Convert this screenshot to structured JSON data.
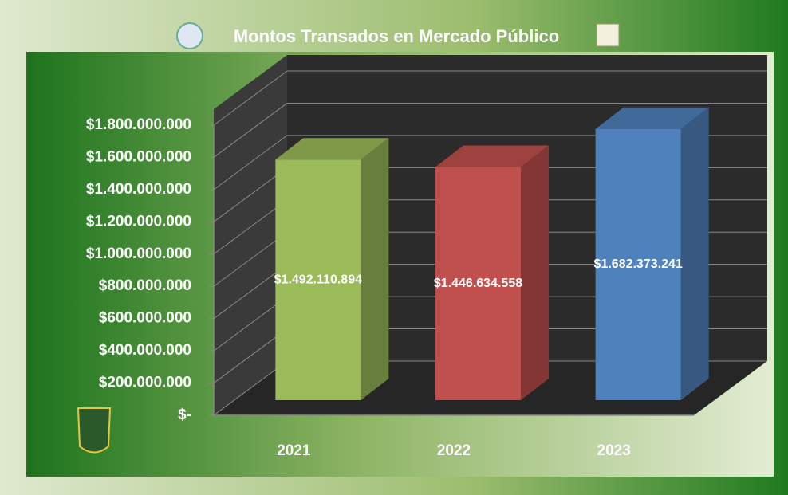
{
  "chart_data": {
    "type": "bar3d",
    "title": "Montos Transados en Mercado Público",
    "categories": [
      "2021",
      "2022",
      "2023"
    ],
    "values": [
      1492110894,
      1446634558,
      1682373241
    ],
    "value_labels": [
      "$1.492.110.894",
      "$1.446.634.558",
      "$1.682.373.241"
    ],
    "colors": [
      "#9bbb59",
      "#c0504d",
      "#4f81bd"
    ],
    "ylim": [
      0,
      1800000000
    ],
    "yticks": [
      {
        "value": 0,
        "label": "$-"
      },
      {
        "value": 200000000,
        "label": "$200.000.000"
      },
      {
        "value": 400000000,
        "label": "$400.000.000"
      },
      {
        "value": 600000000,
        "label": "$600.000.000"
      },
      {
        "value": 800000000,
        "label": "$800.000.000"
      },
      {
        "value": 1000000000,
        "label": "$1.000.000.000"
      },
      {
        "value": 1200000000,
        "label": "$1.200.000.000"
      },
      {
        "value": 1400000000,
        "label": "$1.400.000.000"
      },
      {
        "value": 1600000000,
        "label": "$1.600.000.000"
      },
      {
        "value": 1800000000,
        "label": "$1.800.000.000"
      }
    ],
    "grid": true
  }
}
